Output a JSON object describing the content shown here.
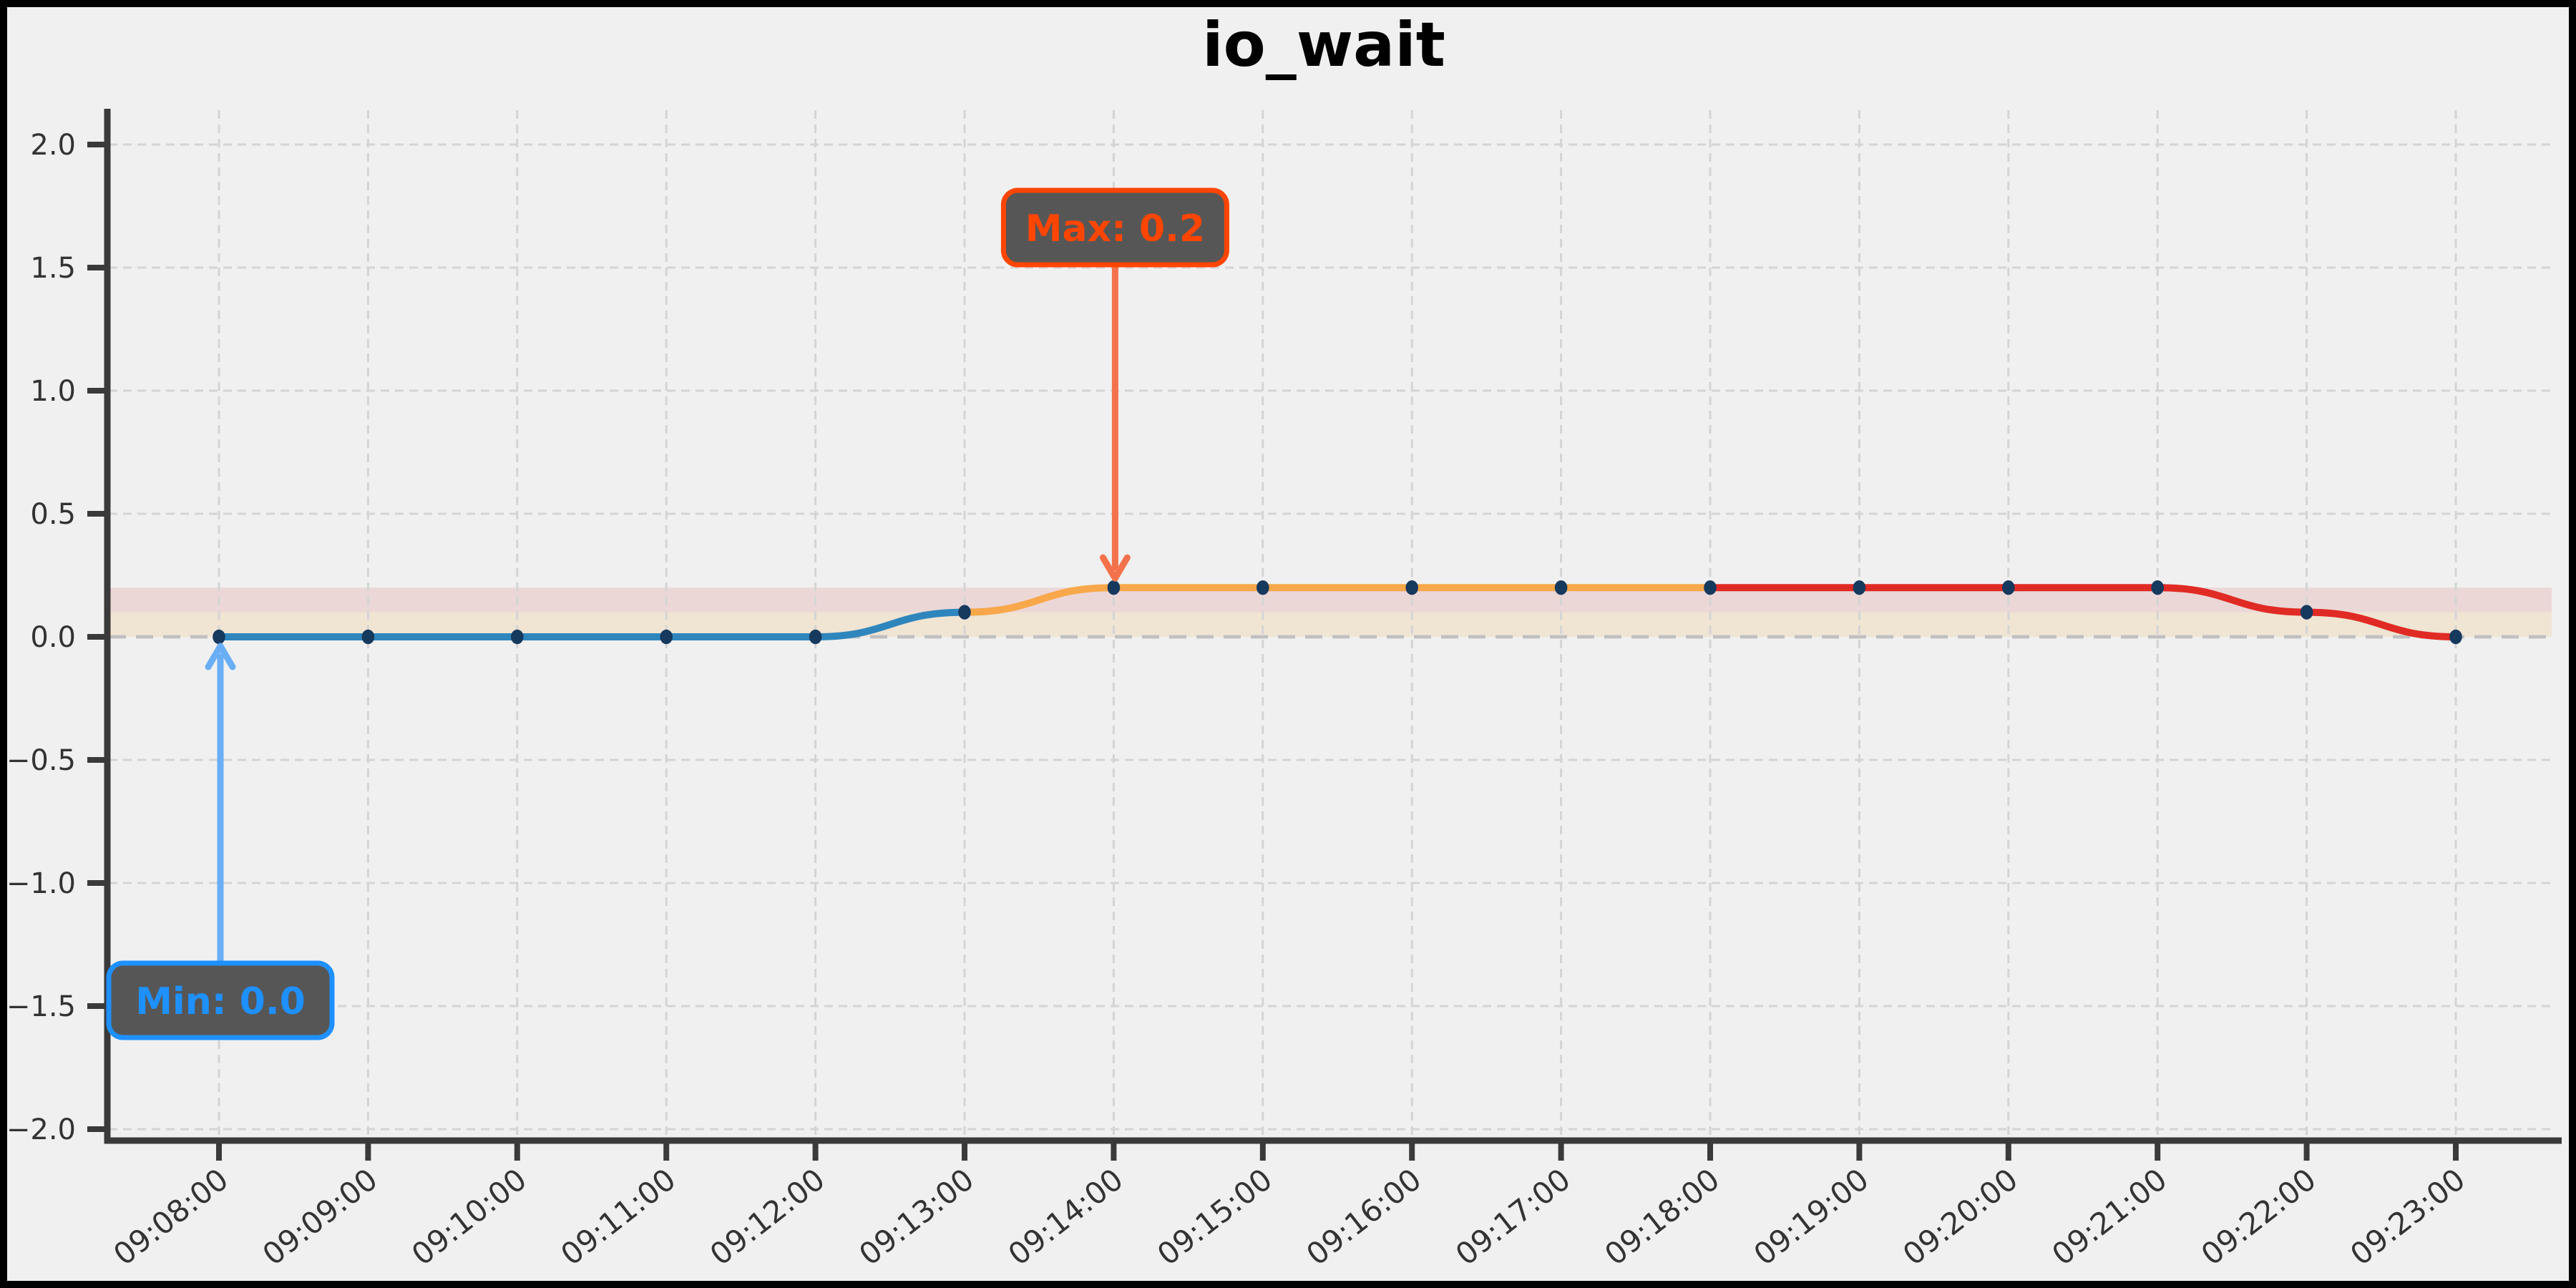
{
  "figure": {
    "background": "#f0f0f0",
    "border_color": "#000000"
  },
  "chart_data": {
    "type": "line",
    "title": "io_wait",
    "x": [
      "09:08:00",
      "09:09:00",
      "09:10:00",
      "09:11:00",
      "09:12:00",
      "09:13:00",
      "09:14:00",
      "09:15:00",
      "09:16:00",
      "09:17:00",
      "09:18:00",
      "09:19:00",
      "09:20:00",
      "09:21:00",
      "09:22:00",
      "09:23:00"
    ],
    "values": [
      0.0,
      0.0,
      0.0,
      0.0,
      0.0,
      0.1,
      0.2,
      0.2,
      0.2,
      0.2,
      0.2,
      0.2,
      0.2,
      0.2,
      0.1,
      0.0
    ],
    "series": [
      {
        "name": "segment-blue",
        "color": "#2f86bd",
        "points": [
          [
            "09:08:00",
            0.0
          ],
          [
            "09:09:00",
            0.0
          ],
          [
            "09:10:00",
            0.0
          ],
          [
            "09:11:00",
            0.0
          ],
          [
            "09:12:00",
            0.0
          ],
          [
            "09:13:00",
            0.1
          ]
        ]
      },
      {
        "name": "segment-orange",
        "color": "#f8a84a",
        "points": [
          [
            "09:13:00",
            0.1
          ],
          [
            "09:14:00",
            0.2
          ],
          [
            "09:15:00",
            0.2
          ],
          [
            "09:16:00",
            0.2
          ],
          [
            "09:17:00",
            0.2
          ],
          [
            "09:18:00",
            0.2
          ]
        ]
      },
      {
        "name": "segment-red",
        "color": "#e02b24",
        "points": [
          [
            "09:18:00",
            0.2
          ],
          [
            "09:19:00",
            0.2
          ],
          [
            "09:20:00",
            0.2
          ],
          [
            "09:21:00",
            0.2
          ],
          [
            "09:22:00",
            0.1
          ],
          [
            "09:23:00",
            0.0
          ]
        ]
      }
    ],
    "ylim": [
      -2.0,
      2.0
    ],
    "yticks": [
      2.0,
      1.5,
      1.0,
      0.5,
      0.0,
      -0.5,
      -1.0,
      -1.5,
      -2.0
    ],
    "ytick_labels": [
      "2.0",
      "1.5",
      "1.0",
      "0.5",
      "0.0",
      "−0.5",
      "−1.0",
      "−1.5",
      "−2.0"
    ],
    "grid": true,
    "legend": "none",
    "bands": [
      {
        "from": 0.1,
        "to": 0.2,
        "color": "rgba(214,39,40,0.12)"
      },
      {
        "from": 0.0,
        "to": 0.1,
        "color": "rgba(245,166,60,0.16)"
      }
    ],
    "annotations": [
      {
        "id": "max",
        "label": "Max: 0.2",
        "target_x": "09:14:00",
        "target_value": 0.2,
        "direction": "down",
        "text_color": "#ff4500",
        "border_color": "#ff4500",
        "box_fill": "#565656",
        "arrow_color": "#f4724b"
      },
      {
        "id": "min",
        "label": "Min: 0.0",
        "target_x": "09:08:00",
        "target_value": 0.0,
        "direction": "up",
        "text_color": "#1e90ff",
        "border_color": "#1e90ff",
        "box_fill": "#565656",
        "arrow_color": "#6aaef5"
      }
    ],
    "marker_color": "#16395e",
    "axis_color": "#3a3a3a",
    "tick_label_color": "#333333",
    "grid_color": "#d4d4d4",
    "zero_line_color": "#c0c0c0"
  }
}
